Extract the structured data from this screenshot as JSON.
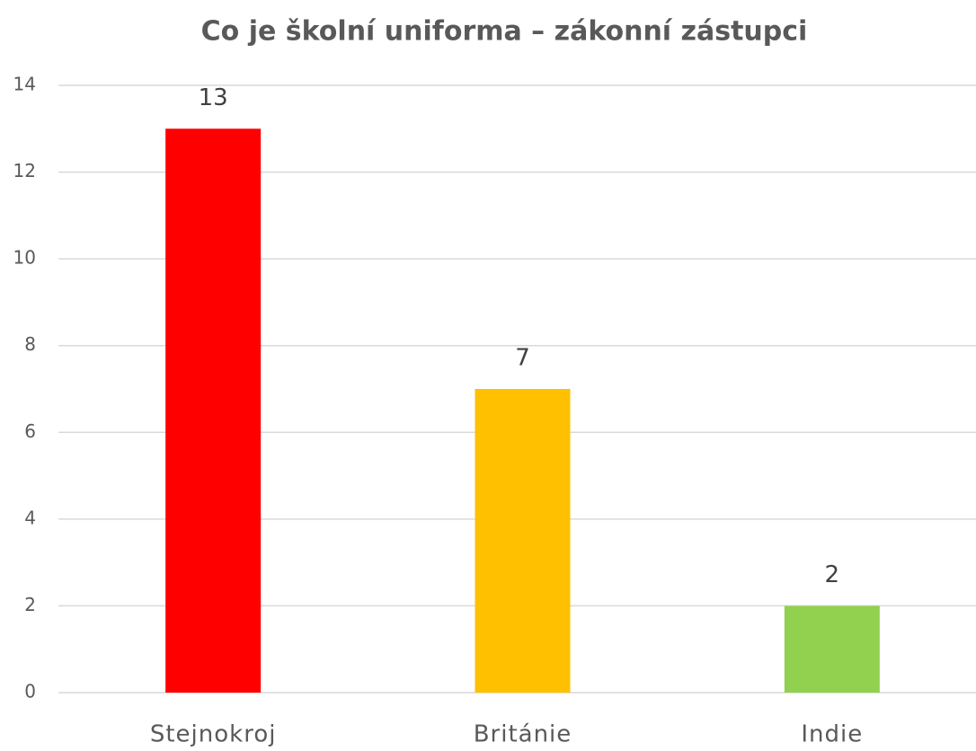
{
  "chart_data": {
    "type": "bar",
    "title": "Co je školní uniforma – zákonní zástupci",
    "categories": [
      "Stejnokroj",
      "Británie",
      "Indie"
    ],
    "values": [
      13,
      7,
      2
    ],
    "colors": [
      "#ff0000",
      "#ffc000",
      "#92d050"
    ],
    "ylim": [
      0,
      14
    ],
    "yticks": [
      0,
      2,
      4,
      6,
      8,
      10,
      12,
      14
    ],
    "grid": true
  }
}
